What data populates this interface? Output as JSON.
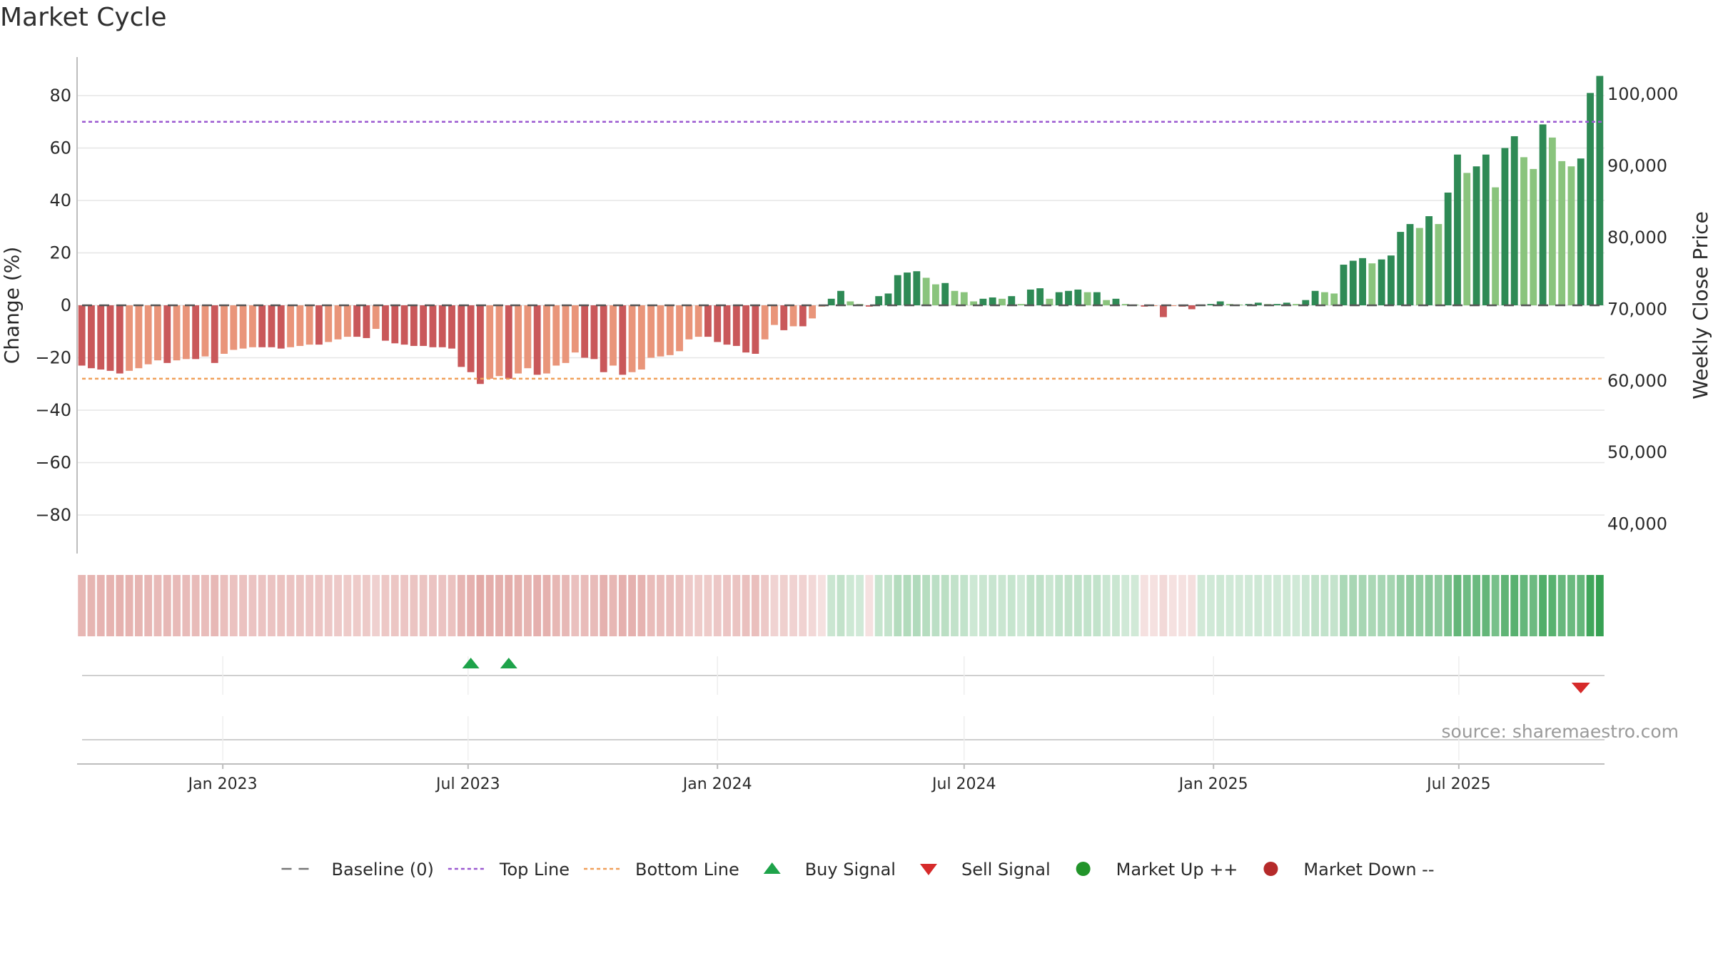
{
  "chart_data": {
    "type": "bar",
    "title": "Market Cycle",
    "ylabel": "Change (%)",
    "y2label": "Weekly Close Price",
    "ylim": [
      -95,
      95
    ],
    "y2lim": [
      35778,
      105278
    ],
    "yticks": [
      80,
      60,
      40,
      20,
      0,
      -20,
      -40,
      -60,
      -80
    ],
    "ytick_labels": [
      "80",
      "60",
      "40",
      "20",
      "0",
      "−20",
      "−40",
      "−60",
      "−80"
    ],
    "y2ticks": [
      100000,
      90000,
      80000,
      70000,
      60000,
      50000,
      40000
    ],
    "y2tick_labels": [
      "100,000",
      "90,000",
      "80,000",
      "70,000",
      "60,000",
      "50,000",
      "40,000"
    ],
    "x_start": "2022-09-19",
    "x_end": "2025-10-13",
    "xticks": [
      "2023-01-01",
      "2023-07-01",
      "2024-01-01",
      "2024-07-01",
      "2025-01-01",
      "2025-07-01"
    ],
    "xtick_labels": [
      "Jan 2023",
      "Jul 2023",
      "Jan 2024",
      "Jul 2024",
      "Jan 2025",
      "Jul 2025"
    ],
    "top_line": 70,
    "bottom_line": -28,
    "baseline": 0,
    "x": [
      "2022-09-19",
      "2022-09-26",
      "2022-10-03",
      "2022-10-10",
      "2022-10-17",
      "2022-10-24",
      "2022-10-31",
      "2022-11-07",
      "2022-11-14",
      "2022-11-21",
      "2022-11-28",
      "2022-12-05",
      "2022-12-12",
      "2022-12-19",
      "2022-12-26",
      "2023-01-02",
      "2023-01-09",
      "2023-01-16",
      "2023-01-23",
      "2023-01-30",
      "2023-02-06",
      "2023-02-13",
      "2023-02-20",
      "2023-02-27",
      "2023-03-06",
      "2023-03-13",
      "2023-03-20",
      "2023-03-27",
      "2023-04-03",
      "2023-04-10",
      "2023-04-17",
      "2023-04-24",
      "2023-05-01",
      "2023-05-08",
      "2023-05-15",
      "2023-05-22",
      "2023-05-29",
      "2023-06-05",
      "2023-06-12",
      "2023-06-19",
      "2023-06-26",
      "2023-07-03",
      "2023-07-10",
      "2023-07-17",
      "2023-07-24",
      "2023-07-31",
      "2023-08-07",
      "2023-08-14",
      "2023-08-21",
      "2023-08-28",
      "2023-09-04",
      "2023-09-11",
      "2023-09-18",
      "2023-09-25",
      "2023-10-02",
      "2023-10-09",
      "2023-10-16",
      "2023-10-23",
      "2023-10-30",
      "2023-11-06",
      "2023-11-13",
      "2023-11-20",
      "2023-11-27",
      "2023-12-04",
      "2023-12-11",
      "2023-12-18",
      "2023-12-25",
      "2024-01-01",
      "2024-01-08",
      "2024-01-15",
      "2024-01-22",
      "2024-01-29",
      "2024-02-05",
      "2024-02-12",
      "2024-02-19",
      "2024-02-26",
      "2024-03-04",
      "2024-03-11",
      "2024-03-18",
      "2024-03-25",
      "2024-04-01",
      "2024-04-08",
      "2024-04-15",
      "2024-04-22",
      "2024-04-29",
      "2024-05-06",
      "2024-05-13",
      "2024-05-20",
      "2024-05-27",
      "2024-06-03",
      "2024-06-10",
      "2024-06-17",
      "2024-06-24",
      "2024-07-01",
      "2024-07-08",
      "2024-07-15",
      "2024-07-22",
      "2024-07-29",
      "2024-08-05",
      "2024-08-12",
      "2024-08-19",
      "2024-08-26",
      "2024-09-02",
      "2024-09-09",
      "2024-09-16",
      "2024-09-23",
      "2024-09-30",
      "2024-10-07",
      "2024-10-14",
      "2024-10-21",
      "2024-10-28",
      "2024-11-04",
      "2024-11-11",
      "2024-11-18",
      "2024-11-25",
      "2024-12-02",
      "2024-12-09",
      "2024-12-16",
      "2024-12-23",
      "2024-12-30",
      "2025-01-06",
      "2025-01-13",
      "2025-01-20",
      "2025-01-27",
      "2025-02-03",
      "2025-02-10",
      "2025-02-17",
      "2025-02-24",
      "2025-03-03",
      "2025-03-10",
      "2025-03-17",
      "2025-03-24",
      "2025-03-31",
      "2025-04-07",
      "2025-04-14",
      "2025-04-21",
      "2025-04-28",
      "2025-05-05",
      "2025-05-12",
      "2025-05-19",
      "2025-05-26",
      "2025-06-02",
      "2025-06-09",
      "2025-06-16",
      "2025-06-23",
      "2025-06-30",
      "2025-07-07",
      "2025-07-14",
      "2025-07-21",
      "2025-07-28",
      "2025-08-04",
      "2025-08-11",
      "2025-08-18",
      "2025-08-25",
      "2025-09-01",
      "2025-09-08",
      "2025-09-15",
      "2025-09-22",
      "2025-09-29",
      "2025-10-06",
      "2025-10-13"
    ],
    "values": [
      -23,
      -24,
      -24.5,
      -25,
      -26,
      -25,
      -24,
      -22.5,
      -21,
      -22,
      -21,
      -20.5,
      -20.5,
      -19.5,
      -22,
      -18.5,
      -17,
      -16.5,
      -16,
      -16,
      -16,
      -16.5,
      -16,
      -15.5,
      -15,
      -15,
      -14,
      -13,
      -12,
      -12,
      -12.5,
      -9,
      -13.5,
      -14.5,
      -15,
      -15.5,
      -15.5,
      -16,
      -16,
      -16.5,
      -23.5,
      -25.5,
      -30,
      -28,
      -27,
      -28,
      -26,
      -24,
      -26.5,
      -26,
      -23,
      -22,
      -18,
      -20,
      -20.5,
      -25.5,
      -23,
      -26.5,
      -25.5,
      -24.5,
      -20,
      -19.5,
      -19,
      -17.5,
      -13,
      -12,
      -12,
      -14,
      -15,
      -15.5,
      -18,
      -18.5,
      -13,
      -7.5,
      -9.5,
      -8,
      -8,
      -5,
      -0.5,
      2.5,
      5.5,
      1.5,
      0.5,
      -0.5,
      3.5,
      4.5,
      11.5,
      12.5,
      13,
      10.5,
      8,
      8.5,
      5.5,
      5,
      1.5,
      2.5,
      3,
      2.5,
      3.5,
      0.5,
      6,
      6.5,
      2.5,
      5,
      5.5,
      6,
      5,
      5,
      2,
      2.5,
      0.5,
      0.3,
      -0.5,
      -0.3,
      -4.5,
      -0.3,
      -0.5,
      -1.5,
      0.3,
      0.5,
      1.5,
      0.5,
      0.3,
      0.5,
      1,
      0.5,
      0.5,
      1,
      0.5,
      2,
      5.5,
      5,
      4.5,
      15.5,
      17,
      18,
      16,
      17.5,
      19,
      28,
      31,
      29.5,
      34,
      31,
      43,
      57.5,
      50.5,
      53,
      57.5,
      45,
      60,
      64.5,
      56.5,
      52,
      69,
      64,
      55,
      53,
      56,
      81,
      87.5
    ],
    "signals": [
      {
        "type": "buy",
        "date": "2023-07-03"
      },
      {
        "type": "buy",
        "date": "2023-07-31"
      },
      {
        "type": "sell",
        "date": "2025-09-29"
      }
    ],
    "legend": [
      {
        "label": "Baseline (0)",
        "symbol": "dash",
        "color": "#777777"
      },
      {
        "label": "Top Line",
        "symbol": "dotted",
        "color": "#9b59d0"
      },
      {
        "label": "Bottom Line",
        "symbol": "dotted",
        "color": "#f0a05a"
      },
      {
        "label": "Buy Signal",
        "symbol": "triangle-up",
        "color": "#1ea34a"
      },
      {
        "label": "Sell Signal",
        "symbol": "triangle-down",
        "color": "#d62a2a"
      },
      {
        "label": "Market Up ++",
        "symbol": "circle",
        "color": "#22942a"
      },
      {
        "label": "Market Down --",
        "symbol": "circle",
        "color": "#b52a2a"
      }
    ],
    "legend_position": "bottom-center",
    "source": "source: sharemaestro.com",
    "colors": {
      "neg_dark": "#c9585a",
      "neg_light": "#e9957a",
      "pos_dark": "#2e8a55",
      "pos_light": "#8ac47d",
      "top_line": "#9b59d0",
      "bottom_line": "#f0a05a",
      "buy": "#1ea34a",
      "sell": "#d62a2a"
    }
  }
}
